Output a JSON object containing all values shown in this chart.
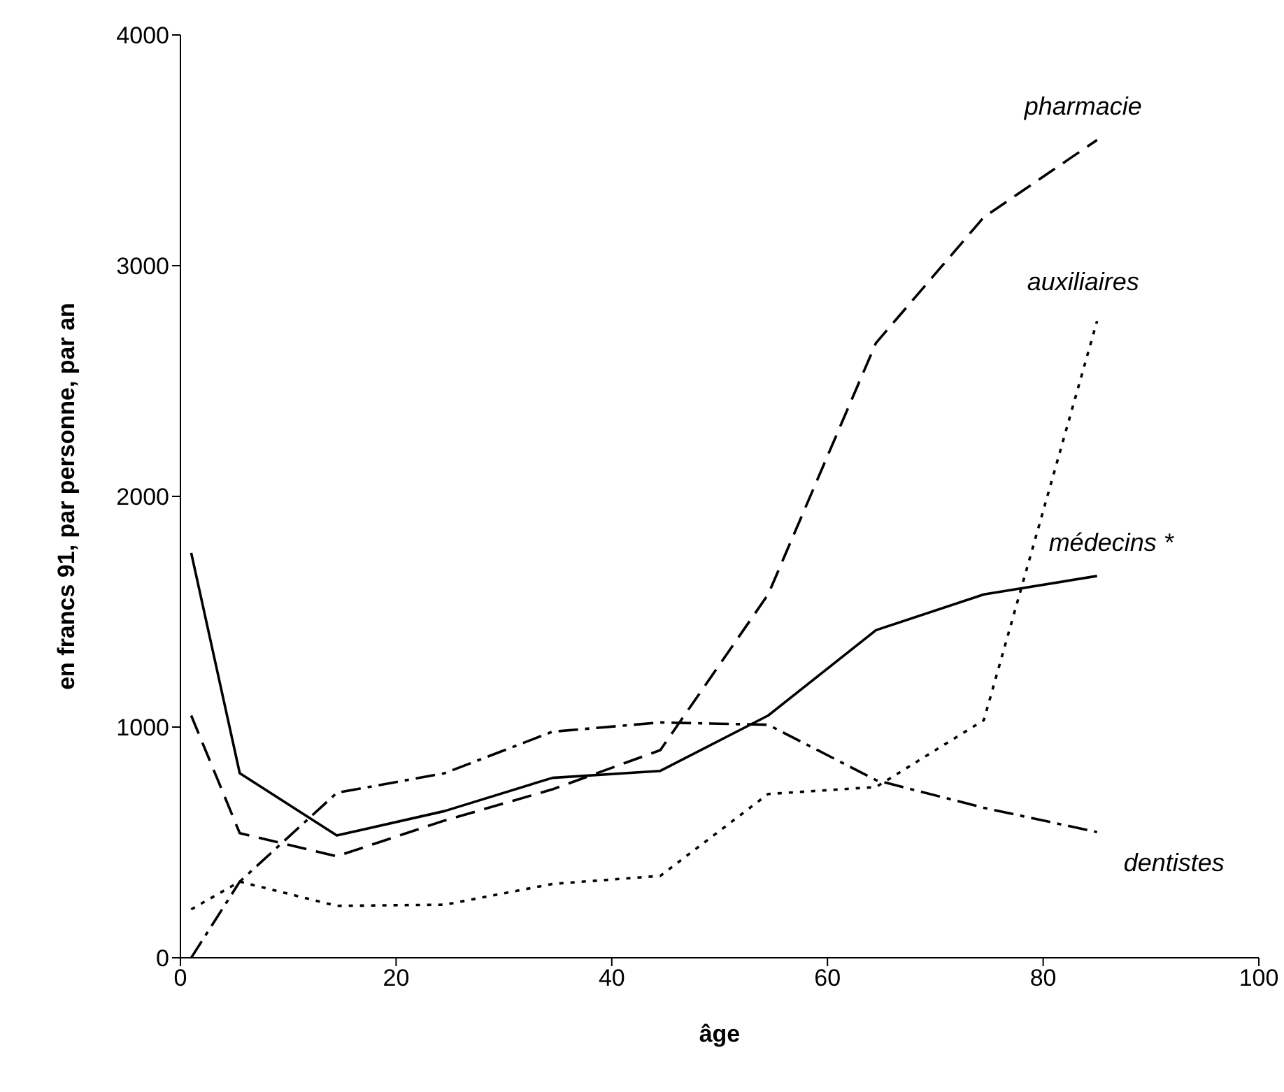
{
  "chart_data": {
    "type": "line",
    "xlabel": "âge",
    "ylabel": "en francs 91, par personne, par an",
    "xlim": [
      0,
      100
    ],
    "xticks": [
      0,
      20,
      40,
      60,
      80,
      100
    ],
    "ylim": [
      0,
      4000
    ],
    "yticks": [
      0,
      1000,
      2000,
      3000,
      4000
    ],
    "marker": "none",
    "x": [
      1,
      5.5,
      14.5,
      24.5,
      34.5,
      44.5,
      54.5,
      64.5,
      74.5,
      85
    ],
    "series": [
      {
        "name": "pharmacie",
        "color": "#000000",
        "line_style": "dashed",
        "values": [
          1050,
          540,
          440,
          595,
          730,
          900,
          1575,
          2665,
          3210,
          3545
        ]
      },
      {
        "name": "auxiliaires",
        "color": "#000000",
        "line_style": "dotted",
        "values": [
          210,
          330,
          225,
          230,
          320,
          355,
          710,
          740,
          1030,
          2760
        ]
      },
      {
        "name": "médecins *",
        "color": "#000000",
        "line_style": "solid",
        "values": [
          1755,
          800,
          530,
          636,
          780,
          810,
          1050,
          1420,
          1575,
          1655
        ]
      },
      {
        "name": "dentistes",
        "color": "#000000",
        "line_style": "dashdot",
        "values": [
          0,
          330,
          715,
          800,
          980,
          1020,
          1010,
          770,
          650,
          545
        ]
      }
    ]
  }
}
